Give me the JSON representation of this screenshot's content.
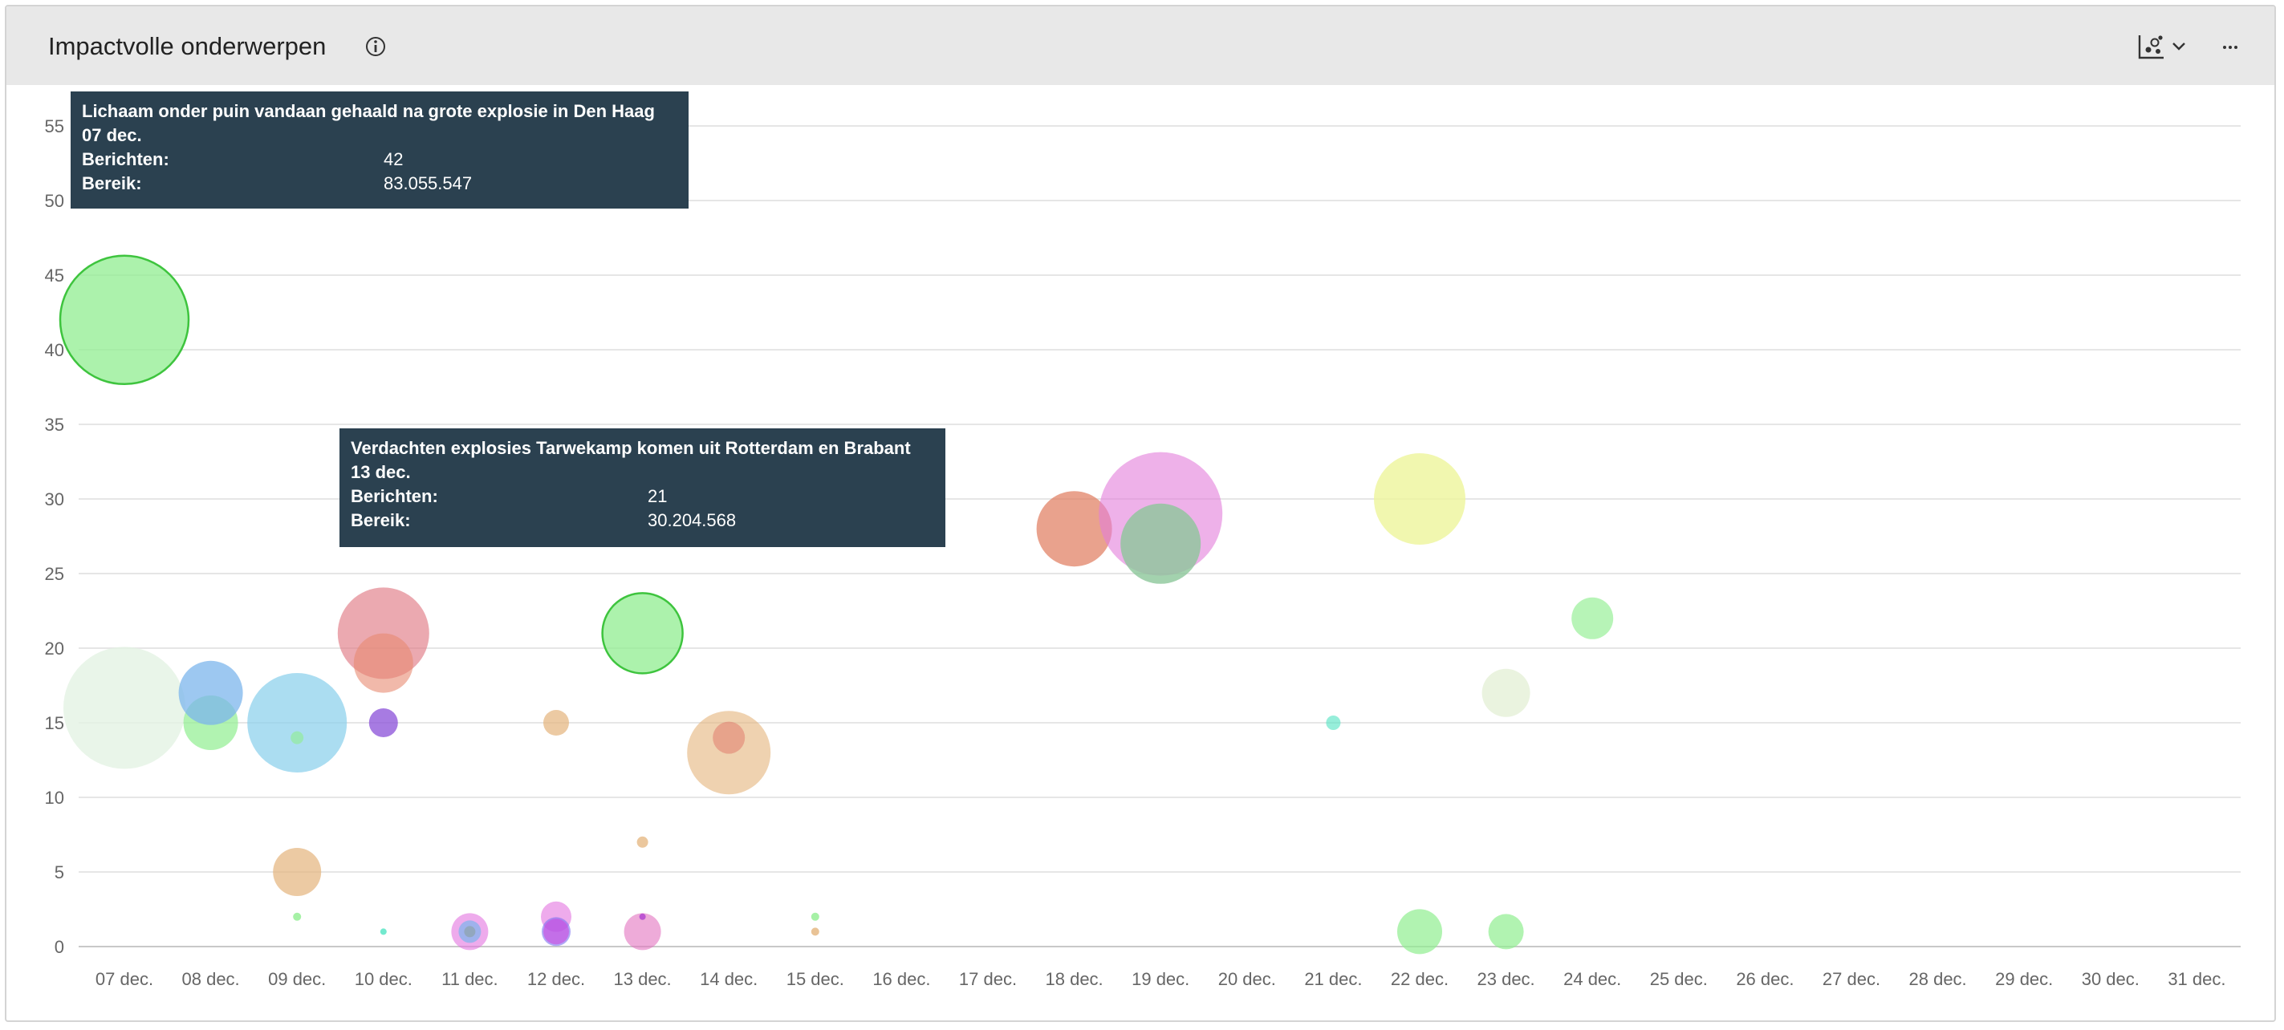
{
  "widget": {
    "title": "Impactvolle onderwerpen",
    "info_icon": "info-icon",
    "chart_type_icon": "bubble-chart-icon",
    "chart_type_dropdown_icon": "chevron-down-icon",
    "more_icon": "more-horizontal-icon"
  },
  "tooltips": [
    {
      "title": "Lichaam onder puin vandaan gehaald na grote explosie in Den Haag",
      "date": "07 dec.",
      "berichten_label": "Berichten:",
      "berichten_value": "42",
      "bereik_label": "Bereik:",
      "bereik_value": "83.055.547"
    },
    {
      "title": "Verdachten explosies Tarwekamp komen uit Rotterdam en Brabant",
      "date": "13 dec.",
      "berichten_label": "Berichten:",
      "berichten_value": "21",
      "bereik_label": "Bereik:",
      "bereik_value": "30.204.568"
    }
  ],
  "chart_data": {
    "type": "scatter",
    "subtype": "bubble",
    "categories": [
      "07 dec.",
      "08 dec.",
      "09 dec.",
      "10 dec.",
      "11 dec.",
      "12 dec.",
      "13 dec.",
      "14 dec.",
      "15 dec.",
      "16 dec.",
      "17 dec.",
      "18 dec.",
      "19 dec.",
      "20 dec.",
      "21 dec.",
      "22 dec.",
      "23 dec.",
      "24 dec.",
      "25 dec.",
      "26 dec.",
      "27 dec.",
      "28 dec.",
      "29 dec.",
      "30 dec.",
      "31 dec."
    ],
    "y_ticks": [
      0,
      5,
      10,
      15,
      20,
      25,
      30,
      35,
      40,
      45,
      50,
      55
    ],
    "ylim": [
      0,
      55
    ],
    "grid": true,
    "xlabel": "",
    "ylabel": "",
    "points": [
      {
        "x": "07 dec.",
        "y": 42,
        "r": 80,
        "color": "#90ee90",
        "opacity": 0.75,
        "stroke": "#3ec43e"
      },
      {
        "x": "07 dec.",
        "y": 16,
        "r": 76,
        "color": "#e4f2e4",
        "opacity": 0.8
      },
      {
        "x": "08 dec.",
        "y": 15,
        "r": 34,
        "color": "#90ee90",
        "opacity": 0.7
      },
      {
        "x": "08 dec.",
        "y": 17,
        "r": 40,
        "color": "#7cb5ec",
        "opacity": 0.75
      },
      {
        "x": "09 dec.",
        "y": 15,
        "r": 62,
        "color": "#87ceeb",
        "opacity": 0.7
      },
      {
        "x": "09 dec.",
        "y": 14,
        "r": 8,
        "color": "#90ee90",
        "opacity": 0.6
      },
      {
        "x": "09 dec.",
        "y": 5,
        "r": 30,
        "color": "#e4b47c",
        "opacity": 0.7
      },
      {
        "x": "09 dec.",
        "y": 2,
        "r": 5,
        "color": "#90ee90",
        "opacity": 0.8
      },
      {
        "x": "10 dec.",
        "y": 21,
        "r": 57,
        "color": "#e07b85",
        "opacity": 0.65
      },
      {
        "x": "10 dec.",
        "y": 19,
        "r": 37,
        "color": "#e88a72",
        "opacity": 0.6
      },
      {
        "x": "10 dec.",
        "y": 15,
        "r": 18,
        "color": "#8a4fd8",
        "opacity": 0.75
      },
      {
        "x": "10 dec.",
        "y": 1,
        "r": 4,
        "color": "#50e3c2",
        "opacity": 0.8
      },
      {
        "x": "11 dec.",
        "y": 1,
        "r": 23,
        "color": "#e373e0",
        "opacity": 0.6
      },
      {
        "x": "11 dec.",
        "y": 1,
        "r": 14,
        "color": "#7cb5ec",
        "opacity": 0.7
      },
      {
        "x": "11 dec.",
        "y": 1,
        "r": 7,
        "color": "#8aa0a0",
        "opacity": 0.6
      },
      {
        "x": "12 dec.",
        "y": 15,
        "r": 16,
        "color": "#e4b47c",
        "opacity": 0.7
      },
      {
        "x": "12 dec.",
        "y": 2,
        "r": 19,
        "color": "#e373e0",
        "opacity": 0.6
      },
      {
        "x": "12 dec.",
        "y": 1,
        "r": 18,
        "color": "#7b6ff0",
        "opacity": 0.6
      },
      {
        "x": "12 dec.",
        "y": 1,
        "r": 16,
        "color": "#d04ae0",
        "opacity": 0.6
      },
      {
        "x": "13 dec.",
        "y": 21,
        "r": 50,
        "color": "#90ee90",
        "opacity": 0.75,
        "stroke": "#3ec43e"
      },
      {
        "x": "13 dec.",
        "y": 7,
        "r": 7,
        "color": "#e4b47c",
        "opacity": 0.75
      },
      {
        "x": "13 dec.",
        "y": 1,
        "r": 23,
        "color": "#e373c0",
        "opacity": 0.6
      },
      {
        "x": "13 dec.",
        "y": 2,
        "r": 4,
        "color": "#b040d0",
        "opacity": 0.8
      },
      {
        "x": "14 dec.",
        "y": 13,
        "r": 52,
        "color": "#e4b47c",
        "opacity": 0.6
      },
      {
        "x": "14 dec.",
        "y": 14,
        "r": 20,
        "color": "#e07b6e",
        "opacity": 0.55
      },
      {
        "x": "15 dec.",
        "y": 2,
        "r": 5,
        "color": "#90ee90",
        "opacity": 0.8
      },
      {
        "x": "15 dec.",
        "y": 1,
        "r": 5,
        "color": "#e4b47c",
        "opacity": 0.8
      },
      {
        "x": "18 dec.",
        "y": 28,
        "r": 47,
        "color": "#e07b5c",
        "opacity": 0.7
      },
      {
        "x": "19 dec.",
        "y": 29,
        "r": 77,
        "color": "#e27ddb",
        "opacity": 0.6
      },
      {
        "x": "19 dec.",
        "y": 27,
        "r": 50,
        "color": "#8cc79a",
        "opacity": 0.8
      },
      {
        "x": "21 dec.",
        "y": 15,
        "r": 9,
        "color": "#50e3c2",
        "opacity": 0.6
      },
      {
        "x": "22 dec.",
        "y": 30,
        "r": 57,
        "color": "#eef59b",
        "opacity": 0.8
      },
      {
        "x": "22 dec.",
        "y": 1,
        "r": 28,
        "color": "#90ee90",
        "opacity": 0.7
      },
      {
        "x": "23 dec.",
        "y": 17,
        "r": 30,
        "color": "#e8f2dc",
        "opacity": 0.9
      },
      {
        "x": "23 dec.",
        "y": 1,
        "r": 22,
        "color": "#90ee90",
        "opacity": 0.7
      },
      {
        "x": "24 dec.",
        "y": 22,
        "r": 26,
        "color": "#90ee90",
        "opacity": 0.65
      }
    ]
  }
}
